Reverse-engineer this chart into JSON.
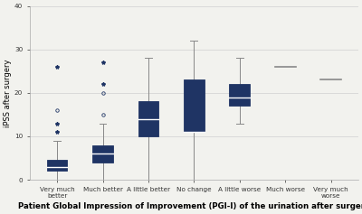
{
  "categories": [
    "Very much\nbetter",
    "Much better",
    "A little better",
    "No change",
    "A little worse",
    "Much worse",
    "Very much\nworse"
  ],
  "box_data": [
    {
      "q1": 2.0,
      "median": 3.0,
      "q3": 4.5,
      "whisker_low": 0.0,
      "whisker_high": 9.0,
      "outliers": [
        11,
        13,
        16,
        26
      ],
      "outlier_styles": [
        "*",
        "*",
        "o",
        "*"
      ]
    },
    {
      "q1": 4.0,
      "median": 6.0,
      "q3": 8.0,
      "whisker_low": 0.0,
      "whisker_high": 13.0,
      "outliers": [
        15,
        20,
        22,
        27
      ],
      "outlier_styles": [
        "o",
        "o",
        "*",
        "*"
      ]
    },
    {
      "q1": 10.0,
      "median": 14.0,
      "q3": 18.0,
      "whisker_low": 0.0,
      "whisker_high": 28.0,
      "outliers": [],
      "outlier_styles": []
    },
    {
      "q1": 11.0,
      "median": 11.0,
      "q3": 23.0,
      "whisker_low": 0.0,
      "whisker_high": 32.0,
      "outliers": [],
      "outlier_styles": []
    },
    {
      "q1": 17.0,
      "median": 19.0,
      "q3": 22.0,
      "whisker_low": 13.0,
      "whisker_high": 28.0,
      "outliers": [],
      "outlier_styles": []
    },
    {
      "q1": 26.0,
      "median": 26.0,
      "q3": 26.0,
      "whisker_low": 26.0,
      "whisker_high": 26.0,
      "outliers": [],
      "outlier_styles": []
    },
    {
      "q1": 23.0,
      "median": 23.0,
      "q3": 23.0,
      "whisker_low": 23.0,
      "whisker_high": 23.0,
      "outliers": [],
      "outlier_styles": []
    }
  ],
  "box_color": "#1f3464",
  "outlier_color": "#1f3464",
  "whisker_color": "#888888",
  "ylabel": "iPSS after surgery",
  "xlabel": "Patient Global Impression of Improvement (PGI-I) of the urination after surgery",
  "ylim": [
    0,
    40
  ],
  "yticks": [
    0,
    10,
    20,
    30,
    40
  ],
  "background_color": "#f2f2ee",
  "grid_color": "#d0d0d0",
  "box_width": 0.45,
  "axis_fontsize": 6.0,
  "tick_fontsize": 5.2,
  "xlabel_fontsize": 6.2
}
